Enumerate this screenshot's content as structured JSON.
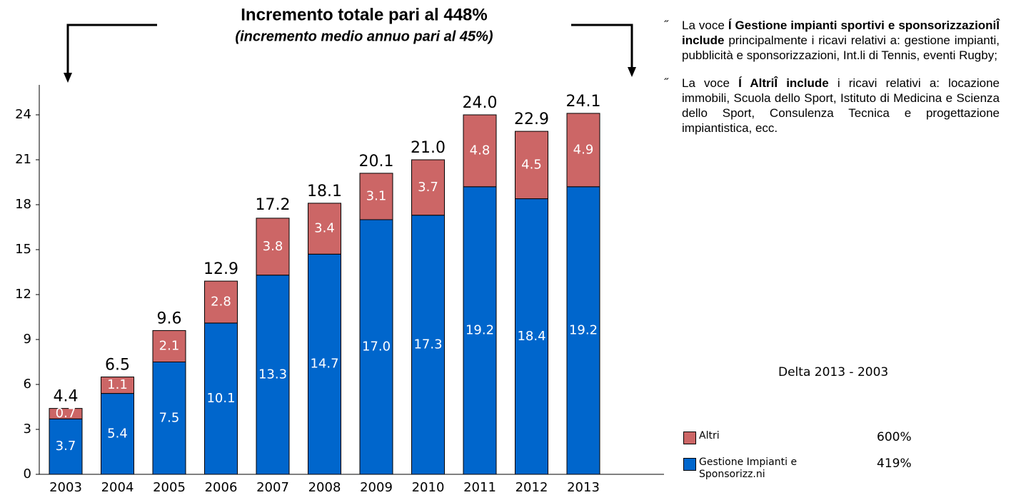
{
  "chart_data": {
    "type": "stacked-bar",
    "title": "Incremento totale pari al 448%",
    "subtitle": "(incremento medio annuo pari al 45%)",
    "categories": [
      "2003",
      "2004",
      "2005",
      "2006",
      "2007",
      "2008",
      "2009",
      "2010",
      "2011",
      "2012",
      "2013"
    ],
    "series": [
      {
        "name": "Gestione Impianti e Sponsorizz.ni",
        "color": "#0066cc",
        "values": [
          3.7,
          5.4,
          7.5,
          10.1,
          13.3,
          14.7,
          17.0,
          17.3,
          19.2,
          18.4,
          19.2
        ],
        "value_labels": [
          "3.7",
          "5.4",
          "7.5",
          "10.1",
          "13.3",
          "14.7",
          "17.0",
          "17.3",
          "19.2",
          "18.4",
          "19.2"
        ],
        "delta": 419,
        "delta_label": "419%"
      },
      {
        "name": "Altri",
        "color": "#cc6666",
        "values": [
          0.7,
          1.1,
          2.1,
          2.8,
          3.8,
          3.4,
          3.1,
          3.7,
          4.8,
          4.5,
          4.9
        ],
        "delta": 600,
        "delta_label": "600%"
      }
    ],
    "totals": {
      "values": [
        4.4,
        6.5,
        9.6,
        12.9,
        17.2,
        18.1,
        20.1,
        21.0,
        24.0,
        22.9,
        24.1
      ],
      "value_labels": [
        "4.4",
        "6.5",
        "9.6",
        "12.9",
        "17.2",
        "18.1",
        "20.1",
        "21.0",
        "24.0",
        "22.9",
        "24.1"
      ]
    },
    "ylim": [
      0,
      26
    ],
    "yticks": [
      0,
      3,
      6,
      9,
      12,
      15,
      18,
      21,
      24
    ],
    "delta_title": "Delta 2013 - 2003"
  },
  "notes": [
    {
      "marker": "˝",
      "lead": "La voce ",
      "bold": "Í Gestione impianti sportivi e sponsorizzazioniÎ include",
      "rest": " principalmente i ricavi relativi a: gestione impianti, pubblicità e sponsorizzazioni, Int.li di Tennis, eventi Rugby;"
    },
    {
      "marker": "˝",
      "lead": "La voce ",
      "bold": "Í AltriÎ include",
      "rest": " i ricavi relativi a: locazione immobili, Scuola dello Sport, Istituto di Medicina e Scienza dello Sport, Consulenza Tecnica e progettazione impiantistica, ecc."
    }
  ]
}
